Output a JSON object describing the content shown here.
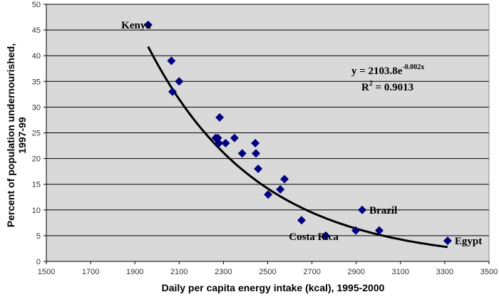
{
  "chart_data": {
    "type": "scatter",
    "title": "",
    "xlabel": "Daily per capita energy intake (kcal), 1995-2000",
    "ylabel_line1": "Percent of population undernourished,",
    "ylabel_line2": "1997-99",
    "xlim": [
      1500,
      3500
    ],
    "ylim": [
      0,
      50
    ],
    "x_ticks": [
      1500,
      1700,
      1900,
      2100,
      2300,
      2500,
      2700,
      2900,
      3100,
      3300,
      3500
    ],
    "y_ticks": [
      0,
      5,
      10,
      15,
      20,
      25,
      30,
      35,
      40,
      45,
      50
    ],
    "grid": "horizontal",
    "plot_background": "#d9d9d9",
    "marker_color": "#000080",
    "points": [
      {
        "x": 1960,
        "y": 46,
        "label": "Kenya"
      },
      {
        "x": 2065,
        "y": 39
      },
      {
        "x": 2070,
        "y": 33
      },
      {
        "x": 2100,
        "y": 35
      },
      {
        "x": 2265,
        "y": 24
      },
      {
        "x": 2275,
        "y": 24
      },
      {
        "x": 2280,
        "y": 23
      },
      {
        "x": 2283,
        "y": 28
      },
      {
        "x": 2310,
        "y": 23
      },
      {
        "x": 2350,
        "y": 24
      },
      {
        "x": 2385,
        "y": 21
      },
      {
        "x": 2444,
        "y": 23
      },
      {
        "x": 2447,
        "y": 21
      },
      {
        "x": 2457,
        "y": 18
      },
      {
        "x": 2502,
        "y": 13
      },
      {
        "x": 2557,
        "y": 14
      },
      {
        "x": 2576,
        "y": 16
      },
      {
        "x": 2653,
        "y": 8
      },
      {
        "x": 2762,
        "y": 5,
        "label": "Costa Rica"
      },
      {
        "x": 2898,
        "y": 6
      },
      {
        "x": 2927,
        "y": 10,
        "label": "Brazil"
      },
      {
        "x": 3004,
        "y": 6
      },
      {
        "x": 3313,
        "y": 4,
        "label": "Egypt"
      }
    ],
    "trendline": {
      "type": "exponential",
      "a": 2103.8,
      "b": -0.002,
      "x_range": [
        1960,
        3313
      ],
      "equation_text": "y = 2103.8e",
      "equation_exponent": "-0.002x",
      "r2_text": "R",
      "r2_sup": "2",
      "r2_value_text": " = 0.9013"
    }
  }
}
